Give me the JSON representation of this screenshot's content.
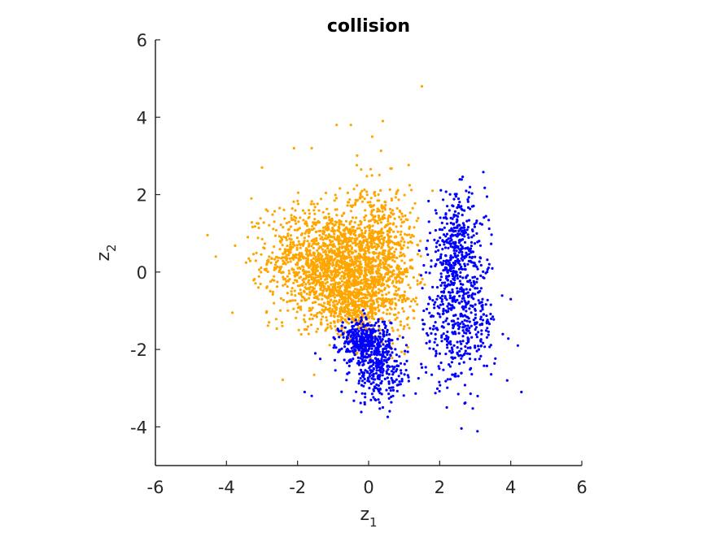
{
  "chart_data": {
    "type": "scatter",
    "title": "collision",
    "xlabel": {
      "main": "z",
      "sub": "1"
    },
    "ylabel": {
      "main": "z",
      "sub": "2"
    },
    "xlim": [
      -6,
      6
    ],
    "ylim": [
      -5,
      6
    ],
    "xticks": [
      -6,
      -4,
      -2,
      0,
      2,
      4,
      6
    ],
    "yticks": [
      -4,
      -2,
      0,
      2,
      4,
      6
    ],
    "xtick_labels": [
      "-6",
      "-4",
      "-2",
      "0",
      "2",
      "4",
      "6"
    ],
    "ytick_labels": [
      "-4",
      "-2",
      "0",
      "2",
      "4",
      "6"
    ],
    "grid": false,
    "series": [
      {
        "color": "#FFA500",
        "clusters": [
          {
            "n": 1500,
            "cx": -1.1,
            "cy": 0.15,
            "sx": 0.85,
            "sy": 0.75,
            "rho": -0.15,
            "xmax": 1.6
          },
          {
            "n": 750,
            "cx": 0.3,
            "cy": 0.4,
            "sx": 0.55,
            "sy": 0.95,
            "rho": 0.0,
            "xmax": 1.6
          },
          {
            "n": 250,
            "cx": -0.3,
            "cy": -0.9,
            "sx": 0.55,
            "sy": 0.35,
            "rho": 0.0,
            "xmax": 1.6
          }
        ],
        "outliers": [
          [
            -4.3,
            0.4
          ],
          [
            1.5,
            4.8
          ],
          [
            0.4,
            3.9
          ],
          [
            -0.5,
            3.8
          ],
          [
            -0.9,
            3.8
          ],
          [
            -1.6,
            3.2
          ],
          [
            -2.1,
            3.2
          ],
          [
            -3.0,
            2.7
          ],
          [
            0.1,
            3.5
          ],
          [
            -3.3,
            1.9
          ],
          [
            -3.4,
            0.9
          ],
          [
            -3.1,
            -0.4
          ],
          [
            -2.8,
            -1.3
          ],
          [
            1.8,
            2.1
          ]
        ]
      },
      {
        "color": "#0000FF",
        "clusters": [
          {
            "n": 380,
            "cx": 2.5,
            "cy": 0.6,
            "sx": 0.4,
            "sy": 0.7,
            "rho": 0.0,
            "xmin": 1.55
          },
          {
            "n": 430,
            "cx": 2.5,
            "cy": -1.3,
            "sx": 0.55,
            "sy": 0.8,
            "rho": 0.0,
            "xmin": 1.4
          },
          {
            "n": 400,
            "cx": -0.1,
            "cy": -1.8,
            "sx": 0.35,
            "sy": 0.3,
            "rho": 0.0
          },
          {
            "n": 260,
            "cx": 0.3,
            "cy": -2.6,
            "sx": 0.4,
            "sy": 0.4,
            "rho": 0.0
          }
        ],
        "outliers": [
          [
            4.3,
            -3.1
          ],
          [
            4.2,
            -1.9
          ],
          [
            4.0,
            -0.7
          ],
          [
            2.2,
            -3.5
          ],
          [
            -1.6,
            -3.2
          ],
          [
            -1.8,
            -3.1
          ],
          [
            0.4,
            -3.5
          ],
          [
            3.9,
            -2.8
          ],
          [
            -1.5,
            -2.1
          ],
          [
            1.7,
            1.3
          ]
        ]
      }
    ]
  }
}
